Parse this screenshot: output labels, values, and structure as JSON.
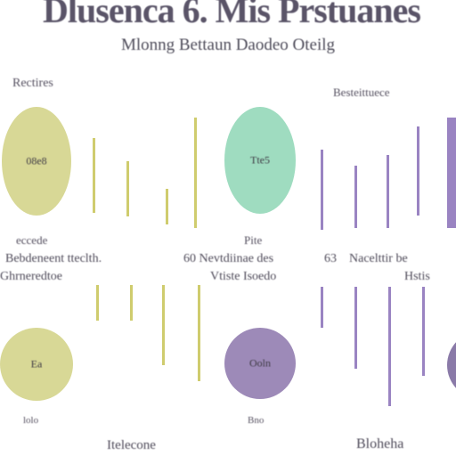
{
  "header": {
    "title": "Dlusenca 6. Mis Prstuanes",
    "subtitle": "Mlonng Bettaun Daodeo Oteilg"
  },
  "labels": {
    "top_left": "Rectires",
    "top_right": "Besteittuece",
    "row1_left": "Bebdeneent tteclth.",
    "row1_mid": "60 Nevtdiinae des",
    "row1_num": "63",
    "row1_right": "Nacelttir be",
    "row2_left": "Ghrneredtoe",
    "row2_mid": "Vtiste Isoedo",
    "row2_right": "Hstis",
    "cap_left": "eccede",
    "cap_mid": "Pite",
    "bottom_left": "lolo",
    "bottom_mid": "Bno",
    "bottom_c1": "Itelecone",
    "bottom_c2": "Bloheha"
  },
  "circles": {
    "c1": "08e8",
    "c2": "Tte5",
    "c3": "Ea",
    "c4": "Ooln"
  },
  "colors": {
    "olive_circle": "#d8d896",
    "mint_circle": "#9fdcc0",
    "violet_circle": "#9d8ab8",
    "olive_bar": "#cfcc6e",
    "violet_bar": "#9a84c2"
  }
}
